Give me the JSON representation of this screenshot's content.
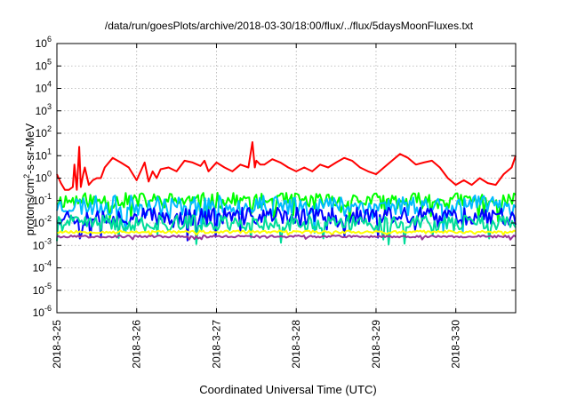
{
  "chart_data": {
    "type": "line",
    "title": "/data/run/goesPlots/archive/2018-03-30/18:00/flux/../flux/5daysMoonFluxes.txt",
    "xlabel": "Coordinated Universal Time (UTC)",
    "ylabel": {
      "prefix": "protons/cm",
      "sup": "2",
      "suffix": "-s-sr-MeV"
    },
    "x_ticks": [
      "2018-3-25",
      "2018-3-26",
      "2018-3-27",
      "2018-3-28",
      "2018-3-29",
      "2018-3-30"
    ],
    "x_range_days": [
      0,
      5.75
    ],
    "y_scale": "log",
    "y_range_exp": [
      -6,
      6
    ],
    "y_ticks": [
      {
        "base": "10",
        "exp": "6"
      },
      {
        "base": "10",
        "exp": "5"
      },
      {
        "base": "10",
        "exp": "4"
      },
      {
        "base": "10",
        "exp": "3"
      },
      {
        "base": "10",
        "exp": "2"
      },
      {
        "base": "10",
        "exp": "1"
      },
      {
        "base": "10",
        "exp": "0"
      },
      {
        "base": "10",
        "exp": "-1"
      },
      {
        "base": "10",
        "exp": "-2"
      },
      {
        "base": "10",
        "exp": "-3"
      },
      {
        "base": "10",
        "exp": "-4"
      },
      {
        "base": "10",
        "exp": "-5"
      },
      {
        "base": "10",
        "exp": "-6"
      }
    ],
    "grid": true,
    "series": [
      {
        "color": "#ff0000",
        "x": [
          0,
          0.05,
          0.1,
          0.15,
          0.2,
          0.22,
          0.25,
          0.28,
          0.3,
          0.33,
          0.35,
          0.4,
          0.45,
          0.5,
          0.55,
          0.6,
          0.7,
          0.8,
          0.9,
          1.0,
          1.05,
          1.1,
          1.15,
          1.2,
          1.25,
          1.3,
          1.4,
          1.5,
          1.6,
          1.7,
          1.8,
          1.85,
          1.9,
          2.0,
          2.1,
          2.2,
          2.3,
          2.4,
          2.45,
          2.48,
          2.5,
          2.55,
          2.6,
          2.7,
          2.8,
          2.9,
          3.0,
          3.1,
          3.2,
          3.3,
          3.4,
          3.5,
          3.6,
          3.7,
          3.8,
          3.9,
          4.0,
          4.1,
          4.2,
          4.3,
          4.4,
          4.5,
          4.6,
          4.7,
          4.8,
          4.9,
          5.0,
          5.1,
          5.2,
          5.3,
          5.4,
          5.5,
          5.6,
          5.7,
          5.75
        ],
        "y": [
          1.5,
          0.6,
          0.3,
          0.3,
          0.4,
          4.0,
          0.3,
          25,
          0.4,
          1.5,
          3.0,
          0.5,
          0.8,
          1.0,
          1.0,
          3.0,
          8.0,
          5.0,
          3.0,
          0.8,
          2.0,
          5.0,
          0.7,
          2.0,
          1.0,
          2.5,
          3.0,
          2.0,
          6.0,
          5.0,
          3.5,
          6.0,
          2.0,
          5.0,
          3.0,
          2.0,
          4.0,
          3.0,
          40,
          3.0,
          6.0,
          4.0,
          4.0,
          7.0,
          5.0,
          3.0,
          2.0,
          3.0,
          2.0,
          4.0,
          3.0,
          5.0,
          8.0,
          6.0,
          3.0,
          2.0,
          1.5,
          3.0,
          6.0,
          12,
          8.0,
          4.0,
          5.0,
          6.0,
          3.0,
          1.0,
          0.5,
          0.8,
          0.5,
          1.0,
          0.6,
          0.5,
          1.5,
          3.0,
          10
        ]
      },
      {
        "color": "#00ff00",
        "y_base": 0.1,
        "y_noise": 0.35,
        "seed": 11
      },
      {
        "color": "#00bbff",
        "y_base": 0.06,
        "y_noise": 0.45,
        "seed": 23
      },
      {
        "color": "#0000ff",
        "y_base": 0.02,
        "y_noise": 0.4,
        "seed": 37
      },
      {
        "color": "#00dd99",
        "y_base": 0.01,
        "y_noise": 0.35,
        "seed": 41
      },
      {
        "color": "#ffff00",
        "y_base": 0.004,
        "y_noise": 0.06,
        "seed": 53
      },
      {
        "color": "#993399",
        "y_base": 0.0025,
        "y_noise": 0.05,
        "seed": 67
      }
    ]
  }
}
